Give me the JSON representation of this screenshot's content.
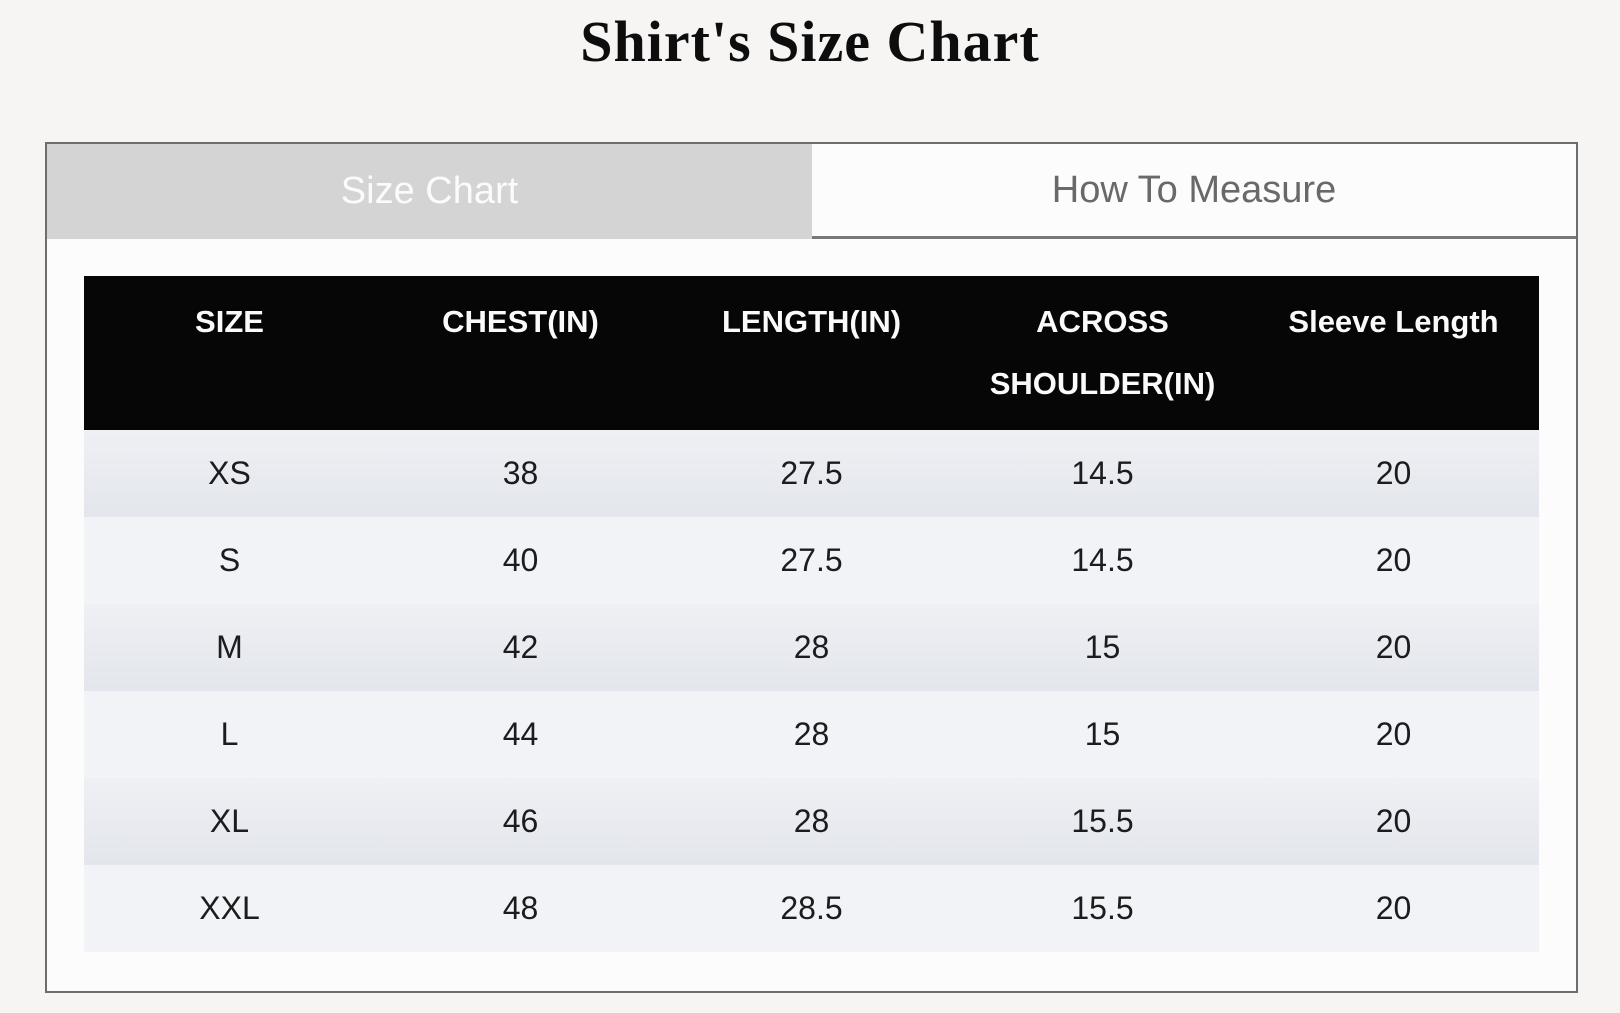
{
  "page": {
    "title": "Shirt's Size Chart"
  },
  "tabs": {
    "size_chart": {
      "label": "Size Chart",
      "active": true
    },
    "how_to_measure": {
      "label": "How To Measure",
      "active": false
    }
  },
  "table": {
    "columns": [
      "SIZE",
      "CHEST(IN)",
      "LENGTH(IN)",
      "ACROSS SHOULDER(IN)",
      "Sleeve Length"
    ],
    "rows": [
      [
        "XS",
        "38",
        "27.5",
        "14.5",
        "20"
      ],
      [
        "S",
        "40",
        "27.5",
        "14.5",
        "20"
      ],
      [
        "M",
        "42",
        "28",
        "15",
        "20"
      ],
      [
        "L",
        "44",
        "28",
        "15",
        "20"
      ],
      [
        "XL",
        "46",
        "28",
        "15.5",
        "20"
      ],
      [
        "XXL",
        "48",
        "28.5",
        "15.5",
        "20"
      ]
    ]
  },
  "colors": {
    "page_background": "#f6f5f4",
    "panel_border": "#6d6d6d",
    "active_tab_background": "#d4d4d4",
    "active_tab_text": "#fbfbfb",
    "inactive_tab_text": "#696969",
    "header_background": "#060606",
    "header_text": "#fafafa",
    "row_odd": "#e6e8ee",
    "row_even": "#f2f3f7"
  }
}
